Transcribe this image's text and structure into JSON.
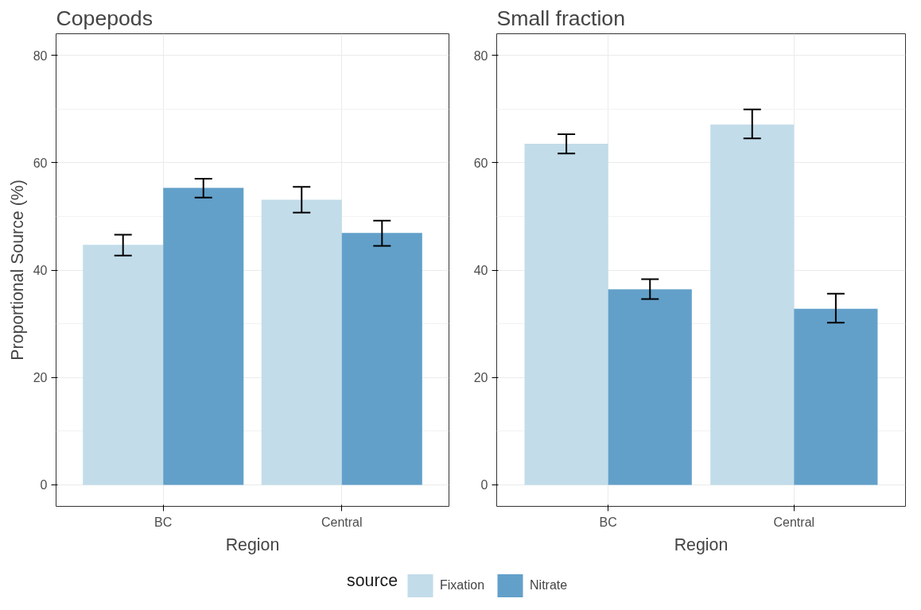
{
  "chart_data": [
    {
      "type": "bar",
      "title": "Copepods",
      "xlabel": "Region",
      "ylabel": "Proportional Source (%)",
      "categories": [
        "BC",
        "Central"
      ],
      "ylim": [
        -4,
        84
      ],
      "yticks": [
        0,
        20,
        40,
        60,
        80
      ],
      "grid": true,
      "legend": "bottom",
      "legend_title": "source",
      "series": [
        {
          "name": "Fixation",
          "color": "#c2dcea",
          "values": [
            44.7,
            53.1
          ],
          "errors": [
            [
              42.7,
              46.6
            ],
            [
              50.7,
              55.5
            ]
          ]
        },
        {
          "name": "Nitrate",
          "color": "#62a0ca",
          "values": [
            55.3,
            46.9
          ],
          "errors": [
            [
              53.5,
              57.0
            ],
            [
              44.5,
              49.2
            ]
          ]
        }
      ]
    },
    {
      "type": "bar",
      "title": "Small fraction",
      "xlabel": "Region",
      "categories": [
        "BC",
        "Central"
      ],
      "ylim": [
        -4,
        84
      ],
      "yticks": [
        0,
        20,
        40,
        60,
        80
      ],
      "grid": true,
      "series": [
        {
          "color": "#c2dcea",
          "values": [
            63.5,
            67.1
          ],
          "errors": [
            [
              61.7,
              65.3
            ],
            [
              64.5,
              69.9
            ]
          ]
        },
        {
          "color": "#62a0ca",
          "values": [
            36.4,
            32.8
          ],
          "errors": [
            [
              34.6,
              38.3
            ],
            [
              30.2,
              35.6
            ]
          ]
        }
      ]
    }
  ]
}
